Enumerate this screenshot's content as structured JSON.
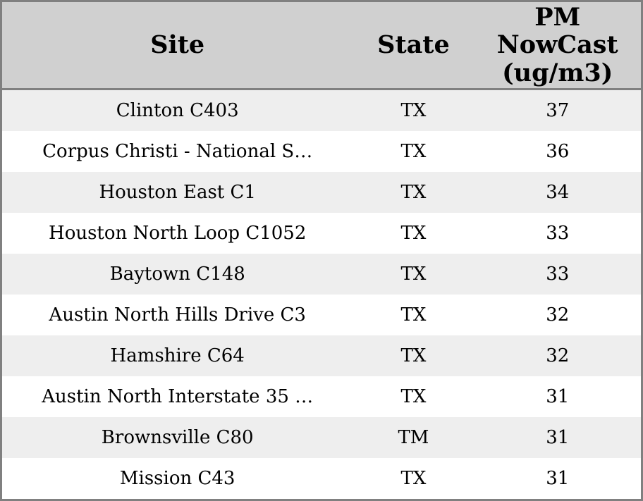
{
  "chart_data": {
    "type": "table",
    "columns": [
      "Site",
      "State",
      "PM NowCast (ug/m3)"
    ],
    "rows": [
      {
        "site": "Clinton C403",
        "state": "TX",
        "pm_nowcast": "37"
      },
      {
        "site": "Corpus Christi - National S…",
        "state": "TX",
        "pm_nowcast": "36"
      },
      {
        "site": "Houston East C1",
        "state": "TX",
        "pm_nowcast": "34"
      },
      {
        "site": "Houston North Loop C1052",
        "state": "TX",
        "pm_nowcast": "33"
      },
      {
        "site": "Baytown C148",
        "state": "TX",
        "pm_nowcast": "33"
      },
      {
        "site": "Austin North Hills Drive C3",
        "state": "TX",
        "pm_nowcast": "32"
      },
      {
        "site": "Hamshire C64",
        "state": "TX",
        "pm_nowcast": "32"
      },
      {
        "site": "Austin North Interstate 35 …",
        "state": "TX",
        "pm_nowcast": "31"
      },
      {
        "site": "Brownsville C80",
        "state": "TM",
        "pm_nowcast": "31"
      },
      {
        "site": "Mission C43",
        "state": "TX",
        "pm_nowcast": "31"
      }
    ],
    "layout": {
      "header_wraps_as": [
        "PM",
        "NowCast",
        "(ug/m3)"
      ],
      "row_striping": "alternating"
    }
  },
  "colors": {
    "frame_border": "#808080",
    "header_background": "#d0d0d0",
    "row_stripe": "#eeeeee",
    "row_plain": "#ffffff",
    "text": "#000000"
  }
}
